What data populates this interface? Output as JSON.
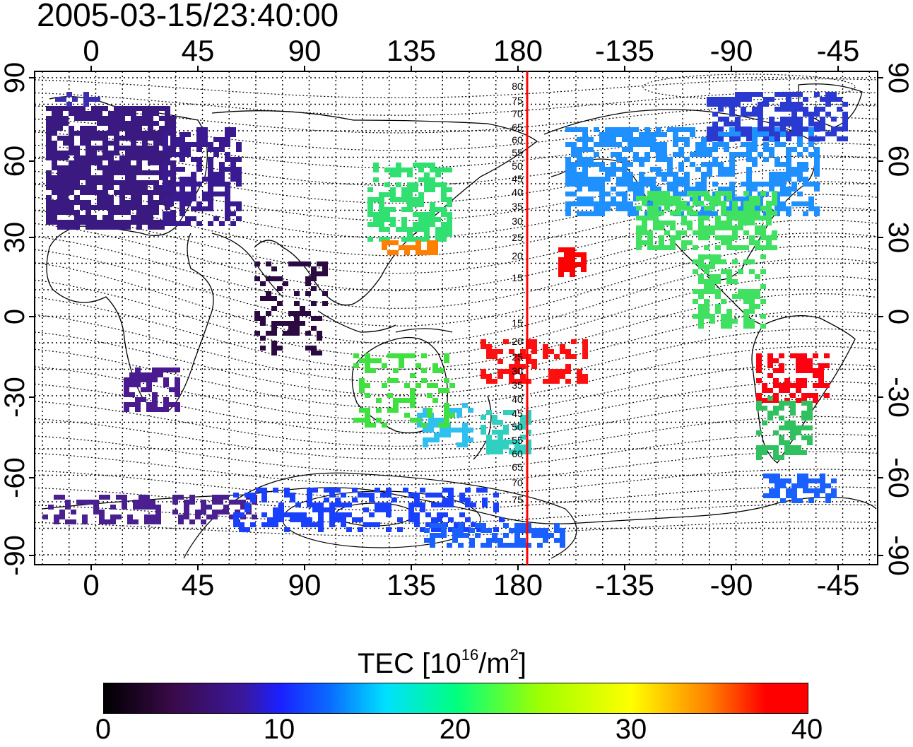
{
  "timestamp": "2005-03-15/23:40:00",
  "colors": {
    "terminator": "#ff0000",
    "colormap": [
      "#000000",
      "#3a0a4a",
      "#3a18a0",
      "#1a20ff",
      "#00e0ff",
      "#00ff80",
      "#a0ff00",
      "#ffff00",
      "#ff8000",
      "#ff0000"
    ]
  },
  "map": {
    "top_lon_labels": [
      "0",
      "45",
      "90",
      "135",
      "180",
      "-135",
      "-90",
      "-45"
    ],
    "bottom_lon_labels": [
      "0",
      "45",
      "90",
      "135",
      "180",
      "-135",
      "-90",
      "-45"
    ],
    "left_lat_labels": [
      "90",
      "60",
      "30",
      "0",
      "-30",
      "-60",
      "-90"
    ],
    "right_lat_labels": [
      "90",
      "60",
      "30",
      "0",
      "-30",
      "-60",
      "-90"
    ],
    "contour_labels": [
      "80",
      "75",
      "70",
      "65",
      "60",
      "55",
      "50",
      "45",
      "40",
      "35",
      "30",
      "25",
      "20",
      "15",
      "15",
      "20",
      "25",
      "30",
      "35",
      "40",
      "45",
      "50",
      "55",
      "60",
      "65",
      "70",
      "75"
    ]
  },
  "colorbar": {
    "title": "TEC  [10",
    "title_sup1": "16",
    "title_mid": "/m",
    "title_sup2": "2",
    "title_end": "]",
    "ticks": [
      "0",
      "10",
      "20",
      "30",
      "40"
    ],
    "range": [
      0,
      40
    ]
  }
}
